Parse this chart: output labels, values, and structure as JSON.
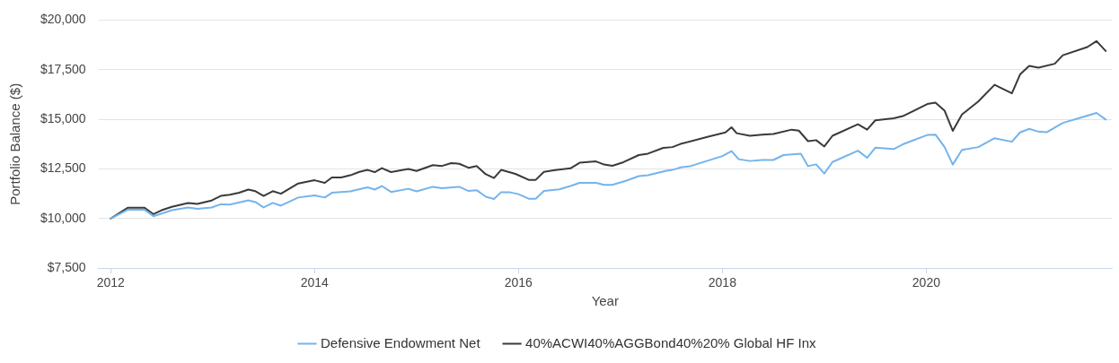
{
  "chart_data": {
    "type": "line",
    "xlabel": "Year",
    "ylabel": "Portfolio Balance ($)",
    "xlim": [
      2011.88,
      2021.82
    ],
    "xticks": [
      2012,
      2014,
      2016,
      2018,
      2020
    ],
    "ylim": [
      7500,
      20000
    ],
    "yticks": [
      {
        "value": 7500,
        "label": "$7,500"
      },
      {
        "value": 10000,
        "label": "$10,000"
      },
      {
        "value": 12500,
        "label": "$12,500"
      },
      {
        "value": 15000,
        "label": "$15,000"
      },
      {
        "value": 17500,
        "label": "$17,500"
      },
      {
        "value": 20000,
        "label": "$20,000"
      }
    ],
    "grid": "y",
    "legend": "bottom",
    "marker": "none",
    "line_style": "solid",
    "series": [
      {
        "name": "Defensive Endowment Net",
        "color": "#74b4ec",
        "x": [
          2012.0,
          2012.17,
          2012.33,
          2012.42,
          2012.6,
          2012.76,
          2012.85,
          2012.99,
          2013.08,
          2013.17,
          2013.35,
          2013.42,
          2013.5,
          2013.59,
          2013.67,
          2013.84,
          2014.0,
          2014.1,
          2014.17,
          2014.35,
          2014.52,
          2014.59,
          2014.66,
          2014.75,
          2014.92,
          2015.0,
          2015.16,
          2015.25,
          2015.42,
          2015.51,
          2015.59,
          2015.68,
          2015.76,
          2015.83,
          2015.91,
          2016.0,
          2016.1,
          2016.17,
          2016.25,
          2016.4,
          2016.51,
          2016.6,
          2016.76,
          2016.84,
          2016.92,
          2017.06,
          2017.18,
          2017.27,
          2017.45,
          2017.51,
          2017.6,
          2017.68,
          2018.0,
          2018.09,
          2018.16,
          2018.27,
          2018.39,
          2018.5,
          2018.6,
          2018.77,
          2018.84,
          2018.92,
          2019.0,
          2019.08,
          2019.33,
          2019.42,
          2019.5,
          2019.68,
          2019.77,
          2020.01,
          2020.09,
          2020.18,
          2020.26,
          2020.35,
          2020.51,
          2020.67,
          2020.84,
          2020.92,
          2021.01,
          2021.1,
          2021.18,
          2021.34,
          2021.5,
          2021.67,
          2021.76
        ],
        "values": [
          10000,
          10450,
          10450,
          10120,
          10420,
          10560,
          10490,
          10560,
          10720,
          10700,
          10920,
          10830,
          10560,
          10790,
          10650,
          11060,
          11170,
          11060,
          11300,
          11370,
          11570,
          11460,
          11640,
          11340,
          11500,
          11370,
          11600,
          11530,
          11600,
          11390,
          11430,
          11100,
          10990,
          11330,
          11330,
          11230,
          11000,
          11000,
          11390,
          11470,
          11640,
          11800,
          11800,
          11700,
          11700,
          11910,
          12140,
          12180,
          12410,
          12450,
          12590,
          12630,
          13150,
          13400,
          12990,
          12900,
          12950,
          12950,
          13200,
          13270,
          12640,
          12730,
          12270,
          12850,
          13420,
          13060,
          13570,
          13500,
          13740,
          14210,
          14230,
          13600,
          12720,
          13460,
          13600,
          14050,
          13870,
          14340,
          14520,
          14380,
          14350,
          14820,
          15060,
          15320,
          14990
        ]
      },
      {
        "name": "40%ACWI40%AGGBond40%20% Global HF Inx",
        "color": "#3a3a3a",
        "x": [
          2012.0,
          2012.17,
          2012.33,
          2012.42,
          2012.5,
          2012.6,
          2012.76,
          2012.85,
          2012.99,
          2013.08,
          2013.17,
          2013.26,
          2013.35,
          2013.42,
          2013.5,
          2013.59,
          2013.67,
          2013.84,
          2014.0,
          2014.1,
          2014.17,
          2014.26,
          2014.35,
          2014.44,
          2014.52,
          2014.59,
          2014.66,
          2014.75,
          2014.92,
          2015.0,
          2015.16,
          2015.25,
          2015.34,
          2015.42,
          2015.51,
          2015.59,
          2015.68,
          2015.76,
          2015.83,
          2015.97,
          2016.1,
          2016.17,
          2016.25,
          2016.36,
          2016.51,
          2016.6,
          2016.76,
          2016.84,
          2016.92,
          2017.03,
          2017.18,
          2017.27,
          2017.42,
          2017.51,
          2017.59,
          2017.87,
          2018.03,
          2018.09,
          2018.14,
          2018.27,
          2018.39,
          2018.5,
          2018.68,
          2018.75,
          2018.84,
          2018.92,
          2019.0,
          2019.08,
          2019.33,
          2019.42,
          2019.5,
          2019.68,
          2019.77,
          2020.01,
          2020.09,
          2020.18,
          2020.26,
          2020.35,
          2020.51,
          2020.67,
          2020.84,
          2020.92,
          2021.01,
          2021.1,
          2021.26,
          2021.34,
          2021.58,
          2021.67,
          2021.76
        ],
        "values": [
          10000,
          10550,
          10550,
          10220,
          10420,
          10590,
          10780,
          10740,
          10910,
          11140,
          11200,
          11300,
          11460,
          11380,
          11140,
          11380,
          11250,
          11770,
          11930,
          11800,
          12070,
          12070,
          12180,
          12350,
          12450,
          12340,
          12540,
          12340,
          12500,
          12400,
          12690,
          12650,
          12790,
          12760,
          12560,
          12650,
          12230,
          12040,
          12450,
          12250,
          11950,
          11950,
          12350,
          12440,
          12530,
          12810,
          12880,
          12720,
          12660,
          12840,
          13200,
          13270,
          13560,
          13600,
          13760,
          14140,
          14340,
          14600,
          14300,
          14170,
          14230,
          14260,
          14480,
          14430,
          13900,
          13950,
          13630,
          14170,
          14750,
          14480,
          14950,
          15050,
          15160,
          15770,
          15840,
          15430,
          14420,
          15240,
          15900,
          16740,
          16310,
          17260,
          17690,
          17600,
          17800,
          18230,
          18640,
          18940,
          18440
        ]
      }
    ]
  }
}
